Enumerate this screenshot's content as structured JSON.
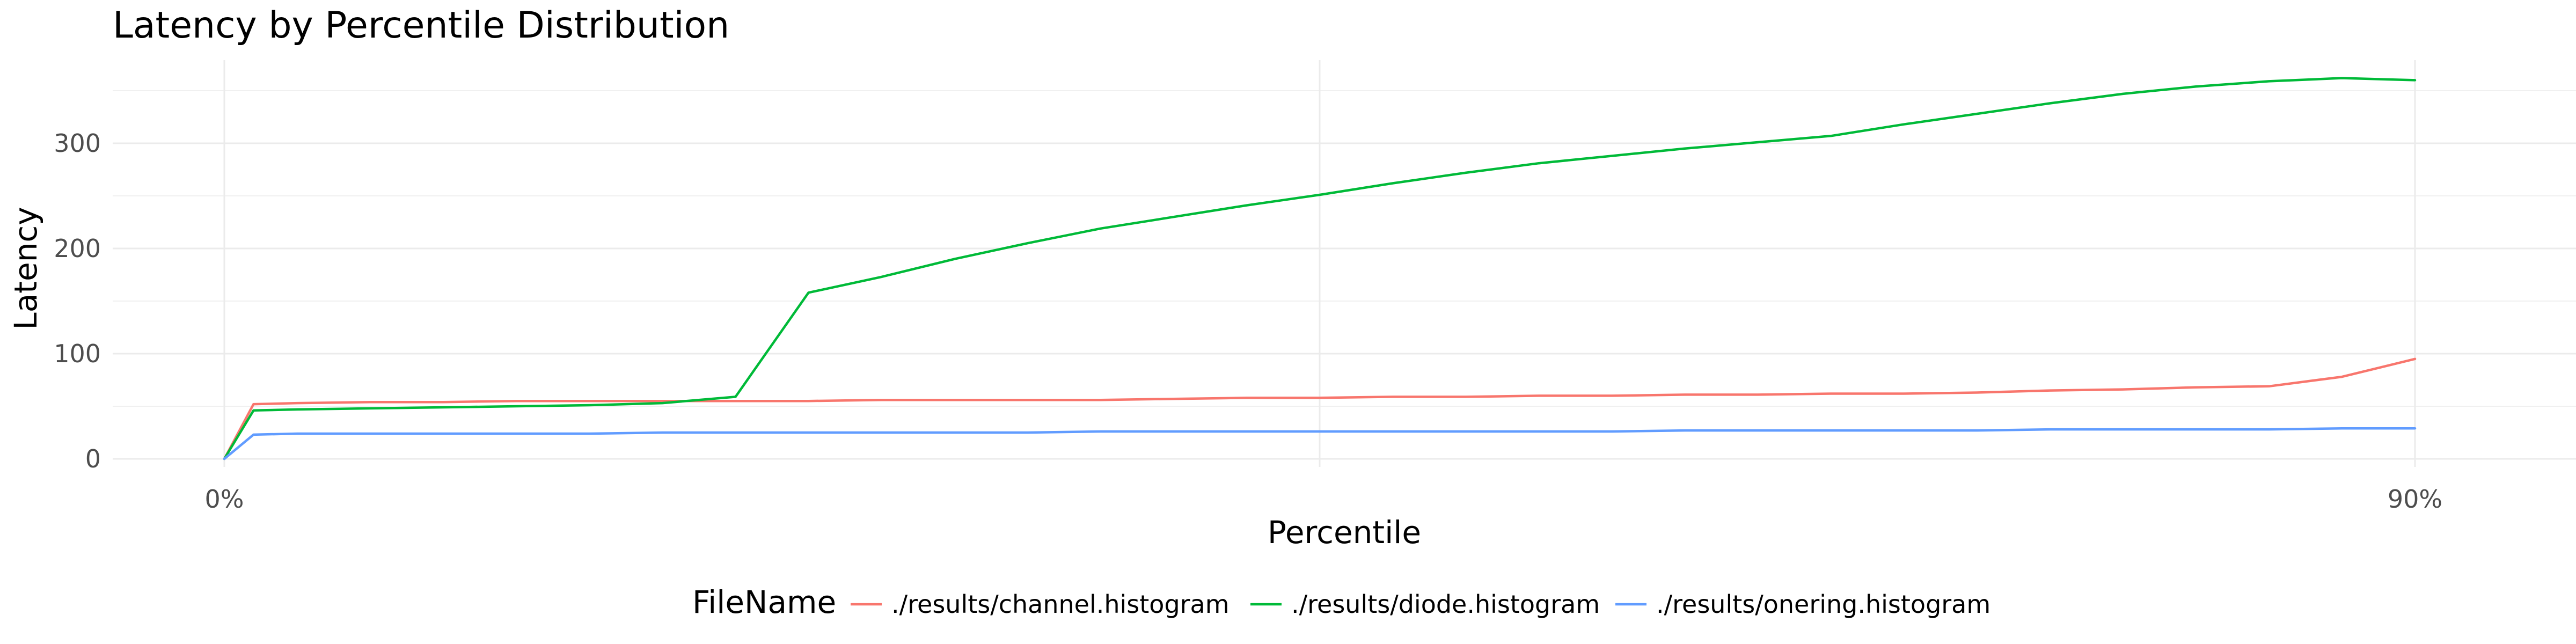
{
  "chart_data": {
    "type": "line",
    "title": "Latency by Percentile Distribution",
    "xlabel": "Percentile",
    "ylabel": "Latency",
    "x_tick_labels": [
      "0%",
      "90%"
    ],
    "y_ticks": [
      0,
      100,
      200,
      300
    ],
    "ylim": [
      -5,
      375
    ],
    "grid": true,
    "legend_position": "bottom",
    "legend_title": "FileName",
    "x": [
      0,
      0.4,
      1,
      2,
      3,
      4,
      5,
      6,
      7,
      8,
      9,
      10,
      11,
      12,
      13,
      14,
      15,
      16,
      17,
      18,
      19,
      20,
      21,
      22,
      23,
      24,
      25,
      26,
      27,
      28,
      29,
      30
    ],
    "series": [
      {
        "name": "./results/channel.histogram",
        "color": "#F8766D",
        "values": [
          0,
          52,
          53,
          54,
          54,
          55,
          55,
          55,
          55,
          55,
          56,
          56,
          56,
          56,
          57,
          58,
          58,
          59,
          59,
          60,
          60,
          61,
          61,
          62,
          62,
          63,
          65,
          66,
          68,
          69,
          78,
          95
        ]
      },
      {
        "name": "./results/diode.histogram",
        "color": "#00BA38",
        "values": [
          0,
          46,
          47,
          48,
          49,
          50,
          51,
          53,
          59,
          158,
          173,
          190,
          205,
          219,
          230,
          241,
          251,
          262,
          272,
          281,
          288,
          295,
          301,
          307,
          318,
          328,
          338,
          347,
          354,
          359,
          362,
          360
        ]
      },
      {
        "name": "./results/onering.histogram",
        "color": "#619CFF",
        "values": [
          0,
          23,
          24,
          24,
          24,
          24,
          24,
          25,
          25,
          25,
          25,
          25,
          25,
          26,
          26,
          26,
          26,
          26,
          26,
          26,
          26,
          27,
          27,
          27,
          27,
          27,
          28,
          28,
          28,
          28,
          29,
          29
        ]
      }
    ]
  }
}
